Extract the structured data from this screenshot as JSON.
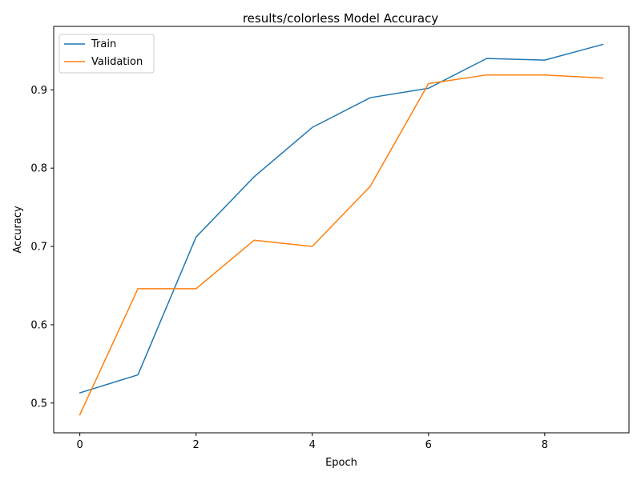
{
  "chart_data": {
    "type": "line",
    "title": "results/colorless Model Accuracy",
    "xlabel": "Epoch",
    "ylabel": "Accuracy",
    "x": [
      0,
      1,
      2,
      3,
      4,
      5,
      6,
      7,
      8,
      9
    ],
    "xlim": [
      -0.45,
      9.45
    ],
    "ylim": [
      0.462,
      0.981
    ],
    "x_ticks": [
      0,
      2,
      4,
      6,
      8
    ],
    "y_ticks": [
      0.5,
      0.6,
      0.7,
      0.8,
      0.9
    ],
    "x_tick_labels": [
      "0",
      "2",
      "4",
      "6",
      "8"
    ],
    "y_tick_labels": [
      "0.5",
      "0.6",
      "0.7",
      "0.8",
      "0.9"
    ],
    "grid": false,
    "legend_position": "top-left",
    "series": [
      {
        "name": "Train",
        "color": "#1f77b4",
        "values": [
          0.513,
          0.536,
          0.712,
          0.789,
          0.852,
          0.89,
          0.902,
          0.94,
          0.938,
          0.958
        ]
      },
      {
        "name": "Validation",
        "color": "#ff7f0e",
        "values": [
          0.485,
          0.646,
          0.646,
          0.708,
          0.7,
          0.777,
          0.908,
          0.919,
          0.919,
          0.915
        ]
      }
    ]
  }
}
